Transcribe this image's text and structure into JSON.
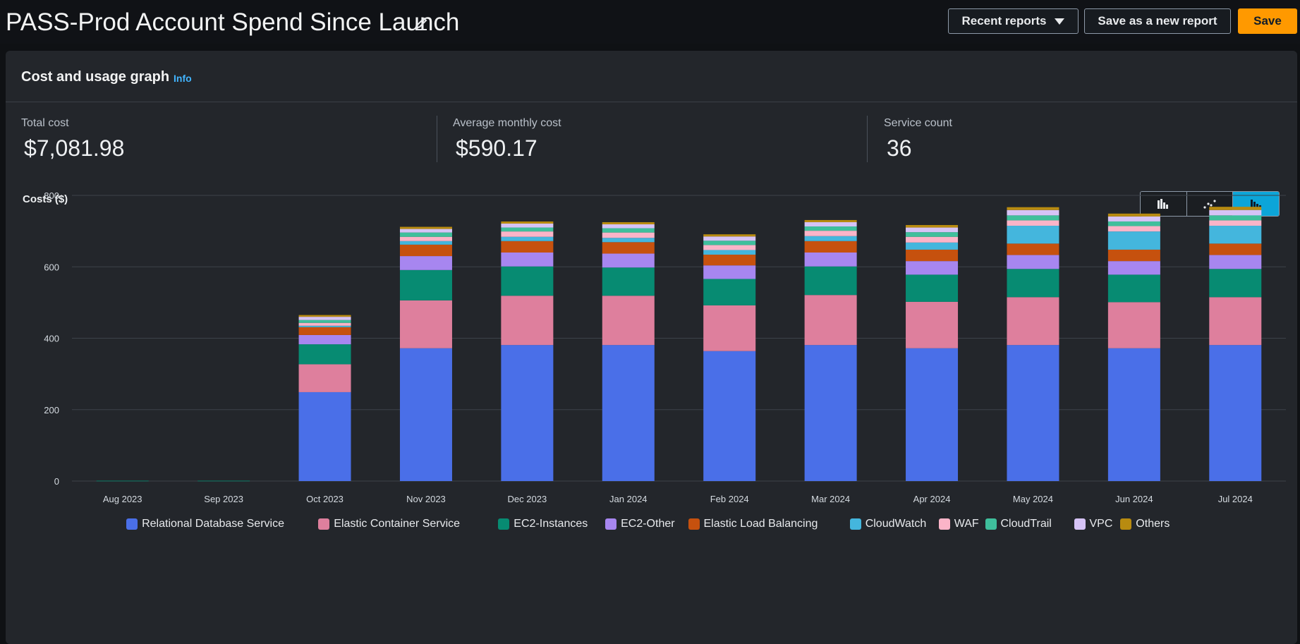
{
  "header": {
    "title": "PASS-Prod Account Spend Since Launch",
    "recent_reports_label": "Recent reports",
    "save_as_new_label": "Save as a new report",
    "save_label": "Save"
  },
  "panel": {
    "title": "Cost and usage graph",
    "info_label": "Info",
    "kpis": [
      {
        "label": "Total cost",
        "value": "$7,081.98"
      },
      {
        "label": "Average monthly cost",
        "value": "$590.17"
      },
      {
        "label": "Service count",
        "value": "36"
      }
    ],
    "chart_type_toggle": {
      "options": [
        "bar-chart-icon",
        "line-chart-icon",
        "stacked-bar-chart-icon"
      ],
      "selected": "stacked-bar-chart-icon"
    }
  },
  "chart_data": {
    "type": "bar",
    "stacked": true,
    "ylabel": "Costs ($)",
    "ylim": [
      0,
      800
    ],
    "yticks": [
      0,
      200,
      400,
      600,
      800
    ],
    "grid": true,
    "legend_position": "bottom",
    "categories": [
      "Aug 2023",
      "Sep 2023",
      "Oct 2023",
      "Nov 2023",
      "Dec 2023",
      "Jan 2024",
      "Feb 2024",
      "Mar 2024",
      "Apr 2024",
      "May 2024",
      "Jun 2024",
      "Jul 2024"
    ],
    "series": [
      {
        "name": "Relational Database Service",
        "color": "#4a6fe8",
        "values": [
          0,
          0,
          249,
          372,
          381,
          381,
          364,
          381,
          372,
          381,
          372,
          381
        ]
      },
      {
        "name": "Elastic Container Service",
        "color": "#de7f9d",
        "values": [
          0,
          0,
          78,
          134,
          138,
          138,
          128,
          140,
          130,
          134,
          129,
          134
        ]
      },
      {
        "name": "EC2-Instances",
        "color": "#078b72",
        "values": [
          1,
          1,
          56,
          85,
          82,
          79,
          74,
          80,
          76,
          79,
          77,
          79
        ]
      },
      {
        "name": "EC2-Other",
        "color": "#a786f0",
        "values": [
          0,
          0,
          26,
          39,
          39,
          39,
          38,
          39,
          38,
          39,
          38,
          39
        ]
      },
      {
        "name": "Elastic Load Balancing",
        "color": "#c6510e",
        "values": [
          0,
          0,
          22,
          32,
          32,
          32,
          30,
          32,
          32,
          32,
          32,
          32
        ]
      },
      {
        "name": "CloudWatch",
        "color": "#44b6dd",
        "values": [
          0,
          0,
          4,
          10,
          12,
          12,
          13,
          14,
          20,
          50,
          51,
          50
        ]
      },
      {
        "name": "WAF",
        "color": "#fbb4c8",
        "values": [
          0,
          0,
          8,
          12,
          15,
          15,
          14,
          15,
          16,
          15,
          15,
          15
        ]
      },
      {
        "name": "CloudTrail",
        "color": "#3fbf9c",
        "values": [
          0,
          0,
          8,
          12,
          11,
          12,
          12,
          12,
          13,
          14,
          13,
          14
        ]
      },
      {
        "name": "VPC",
        "color": "#d6c3f6",
        "values": [
          0,
          0,
          9,
          10,
          11,
          11,
          12,
          12,
          13,
          15,
          14,
          15
        ]
      },
      {
        "name": "Others",
        "color": "#b88b10",
        "values": [
          0,
          0,
          5,
          6,
          6,
          6,
          6,
          6,
          7,
          8,
          8,
          9
        ]
      }
    ]
  }
}
